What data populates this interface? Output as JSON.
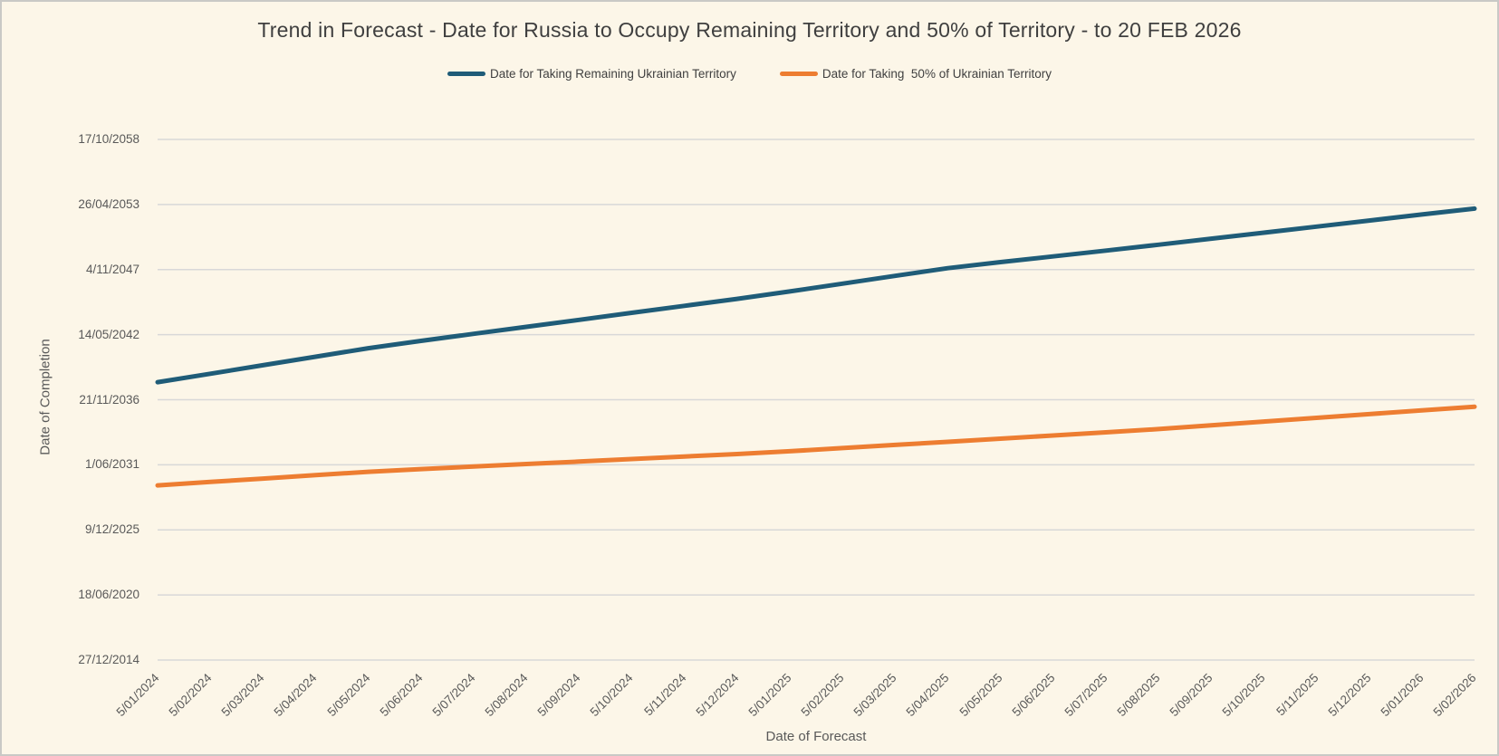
{
  "title": "Trend in Forecast - Date for Russia to Occupy Remaining Territory and 50% of Territory - to 20 FEB 2026",
  "colors": {
    "background": "#FCF6E8",
    "border": "#C9C9C6",
    "gridline": "#D8D8D8",
    "title_text": "#3F3F3F",
    "axis_text": "#595959",
    "series_blue": "#1F5C78",
    "series_orange": "#ED7D31"
  },
  "chart_data": {
    "type": "line",
    "title": "Trend in Forecast - Date for Russia to Occupy Remaining Territory and 50% of Territory - to 20 FEB 2026",
    "xlabel": "Date of Forecast",
    "ylabel": "Date of Completion",
    "grid": true,
    "legend_position": "top-center",
    "x_categories": [
      "5/01/2024",
      "5/02/2024",
      "5/03/2024",
      "5/04/2024",
      "5/05/2024",
      "5/06/2024",
      "5/07/2024",
      "5/08/2024",
      "5/09/2024",
      "5/10/2024",
      "5/11/2024",
      "5/12/2024",
      "5/01/2025",
      "5/02/2025",
      "5/03/2025",
      "5/04/2025",
      "5/05/2025",
      "5/06/2025",
      "5/07/2025",
      "5/08/2025",
      "5/09/2025",
      "5/10/2025",
      "5/11/2025",
      "5/12/2025",
      "5/01/2026",
      "5/02/2026"
    ],
    "y_axis": {
      "min": "2014-12-27",
      "max": "2058-10-17",
      "tick_interval_days": 2000,
      "ticks": [
        {
          "label": "27/12/2014",
          "date": "2014-12-27"
        },
        {
          "label": "18/06/2020",
          "date": "2020-06-18"
        },
        {
          "label": "9/12/2025",
          "date": "2025-12-09"
        },
        {
          "label": "1/06/2031",
          "date": "2031-06-01"
        },
        {
          "label": "21/11/2036",
          "date": "2036-11-21"
        },
        {
          "label": "14/05/2042",
          "date": "2042-05-14"
        },
        {
          "label": "4/11/2047",
          "date": "2047-11-04"
        },
        {
          "label": "26/04/2053",
          "date": "2053-04-26"
        },
        {
          "label": "17/10/2058",
          "date": "2058-10-17"
        }
      ]
    },
    "series": [
      {
        "name": "Date for Taking Remaining Ukrainian Territory",
        "color": "#1F5C78",
        "values": [
          "2038-05-15",
          "2039-01-30",
          "2039-10-18",
          "2040-07-05",
          "2041-03-22",
          "2041-11-05",
          "2042-06-10",
          "2043-01-10",
          "2043-08-12",
          "2044-03-15",
          "2044-10-16",
          "2045-05-18",
          "2046-01-02",
          "2046-08-28",
          "2047-04-24",
          "2047-12-18",
          "2048-06-20",
          "2048-12-14",
          "2049-06-10",
          "2049-12-08",
          "2050-06-12",
          "2050-12-13",
          "2051-06-17",
          "2051-12-20",
          "2052-06-22",
          "2052-12-22"
        ]
      },
      {
        "name": "Date for Taking  50% of Ukrainian Territory",
        "color": "#ED7D31",
        "values": [
          "2029-09-07",
          "2029-12-21",
          "2030-04-03",
          "2030-07-18",
          "2030-10-29",
          "2031-01-20",
          "2031-04-08",
          "2031-06-25",
          "2031-09-08",
          "2031-11-25",
          "2032-02-11",
          "2032-04-26",
          "2032-07-21",
          "2032-10-26",
          "2033-02-01",
          "2033-05-07",
          "2033-08-12",
          "2033-11-17",
          "2034-02-23",
          "2034-06-03",
          "2034-09-25",
          "2035-01-20",
          "2035-05-14",
          "2035-09-05",
          "2036-01-01",
          "2036-04-21"
        ]
      }
    ]
  }
}
